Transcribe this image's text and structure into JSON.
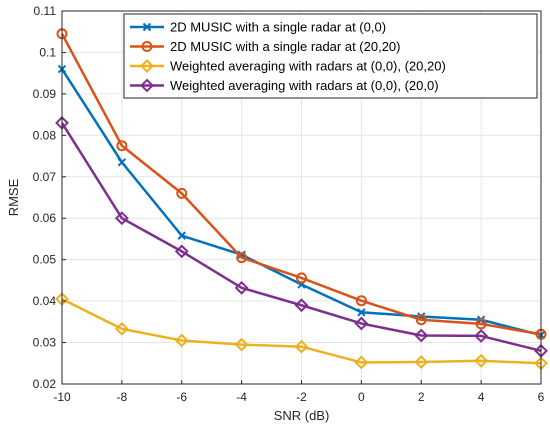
{
  "chart_data": {
    "type": "line",
    "title": "",
    "xlabel": "SNR (dB)",
    "ylabel": "RMSE",
    "x": [
      -10,
      -8,
      -6,
      -4,
      -2,
      0,
      2,
      4,
      6
    ],
    "xlim": [
      -10,
      6
    ],
    "ylim": [
      0.02,
      0.11
    ],
    "xticks": [
      "-10",
      "-8",
      "-6",
      "-4",
      "-2",
      "0",
      "2",
      "4",
      "6"
    ],
    "yticks": [
      "0.02",
      "0.03",
      "0.04",
      "0.05",
      "0.06",
      "0.07",
      "0.08",
      "0.09",
      "0.1",
      "0.11"
    ],
    "grid": true,
    "legend_position": "top-right",
    "series": [
      {
        "name": "2D MUSIC with a single radar at (0,0)",
        "color": "#0072BD",
        "marker": "x",
        "values": [
          0.096,
          0.0735,
          0.0558,
          0.0512,
          0.044,
          0.0373,
          0.0363,
          0.0355,
          0.0318
        ]
      },
      {
        "name": "2D MUSIC with a single radar at (20,20)",
        "color": "#D95319",
        "marker": "circle",
        "values": [
          0.1045,
          0.0775,
          0.066,
          0.0505,
          0.0456,
          0.0401,
          0.0355,
          0.0345,
          0.032
        ]
      },
      {
        "name": "Weighted averaging with radars at (0,0), (20,20)",
        "color": "#EDB120",
        "marker": "diamond",
        "values": [
          0.0405,
          0.0333,
          0.0305,
          0.0295,
          0.029,
          0.0252,
          0.0253,
          0.0256,
          0.025
        ]
      },
      {
        "name": "Weighted averaging with radars at (0,0), (20,0)",
        "color": "#7E2F8E",
        "marker": "diamond",
        "values": [
          0.083,
          0.06,
          0.052,
          0.0432,
          0.039,
          0.0346,
          0.0317,
          0.0316,
          0.028
        ]
      }
    ]
  }
}
